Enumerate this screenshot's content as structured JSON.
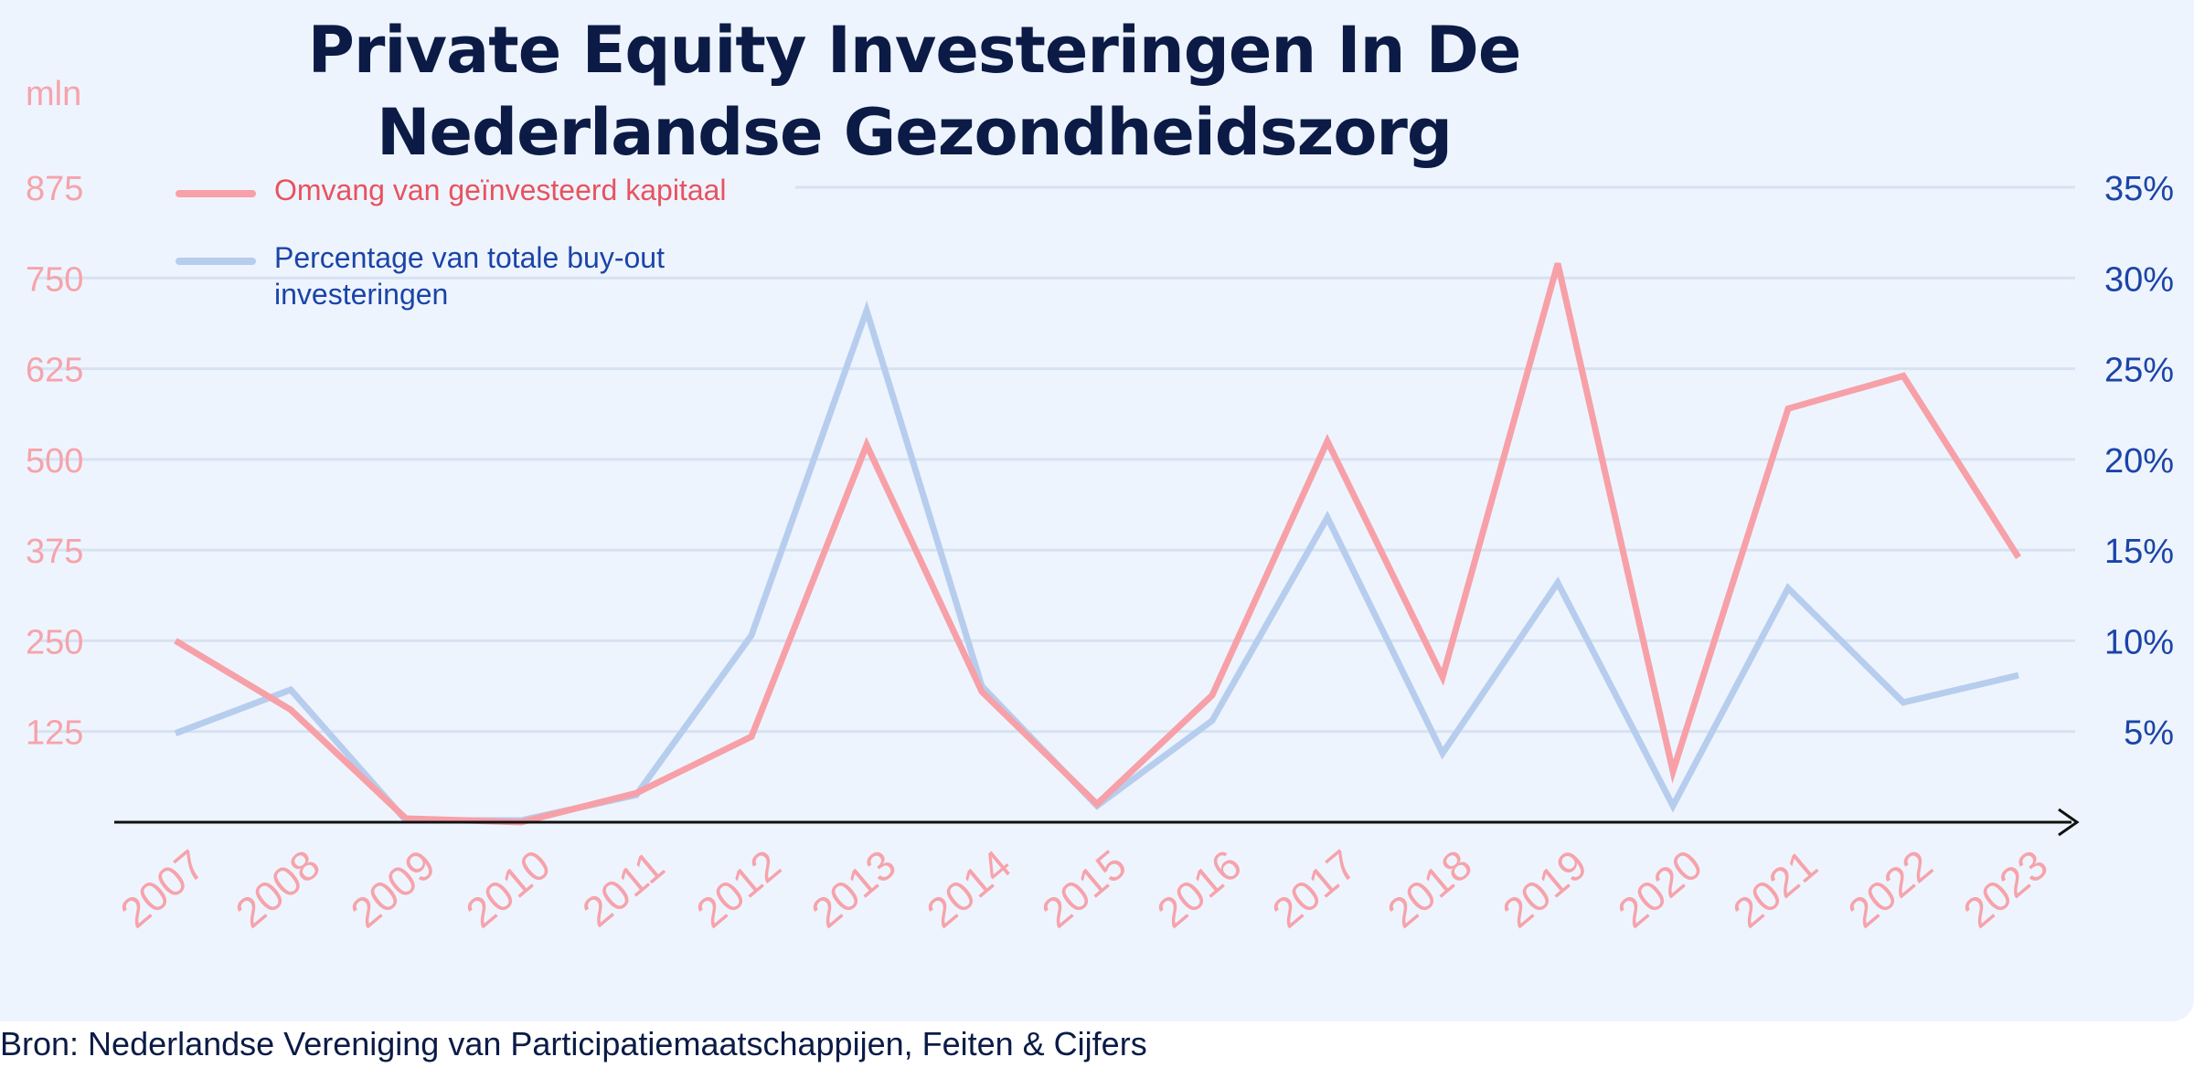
{
  "source": "Bron: Nederlandse Vereniging van Participatiemaatschappijen, Feiten & Cijfers",
  "colors": {
    "primary": "#f7a0a8",
    "secondary": "#b6cdee",
    "left_axis_text": "#f6a3ab",
    "right_axis_text": "#1b44a8",
    "title": "#0b1b46",
    "legend_primary_text": "#e8525f",
    "legend_secondary_text": "#1b44a8"
  },
  "chart_data": {
    "type": "line",
    "title": "Private Equity Investeringen In De Nederlandse Gezondheidszorg",
    "y_left_unit": "mln",
    "x": [
      "2007",
      "2008",
      "2009",
      "2010",
      "2011",
      "2012",
      "2013",
      "2014",
      "2015",
      "2016",
      "2017",
      "2018",
      "2019",
      "2020",
      "2021",
      "2022",
      "2023"
    ],
    "y_left": {
      "min": 0,
      "max": 875,
      "ticks": [
        125,
        250,
        375,
        500,
        625,
        750,
        875
      ]
    },
    "y_right": {
      "min": 0,
      "max": 35,
      "ticks": [
        "5%",
        "10%",
        "15%",
        "20%",
        "25%",
        "30%",
        "35%"
      ],
      "tick_values": [
        5,
        10,
        15,
        20,
        25,
        30,
        35
      ]
    },
    "grid": true,
    "legend_position": "top-left",
    "series": [
      {
        "name": "Omvang van geïnvesteerd kapitaal",
        "axis": "left",
        "values": [
          250,
          155,
          5,
          0,
          40,
          118,
          520,
          180,
          25,
          175,
          525,
          200,
          770,
          70,
          570,
          615,
          365
        ]
      },
      {
        "name": "Percentage van totale buy-out investeringen",
        "axis": "right",
        "values": [
          4.9,
          7.3,
          0.1,
          0.1,
          1.5,
          10.3,
          28.2,
          7.5,
          0.9,
          5.6,
          16.8,
          3.8,
          13.2,
          0.9,
          12.9,
          6.6,
          8.1
        ]
      }
    ]
  }
}
